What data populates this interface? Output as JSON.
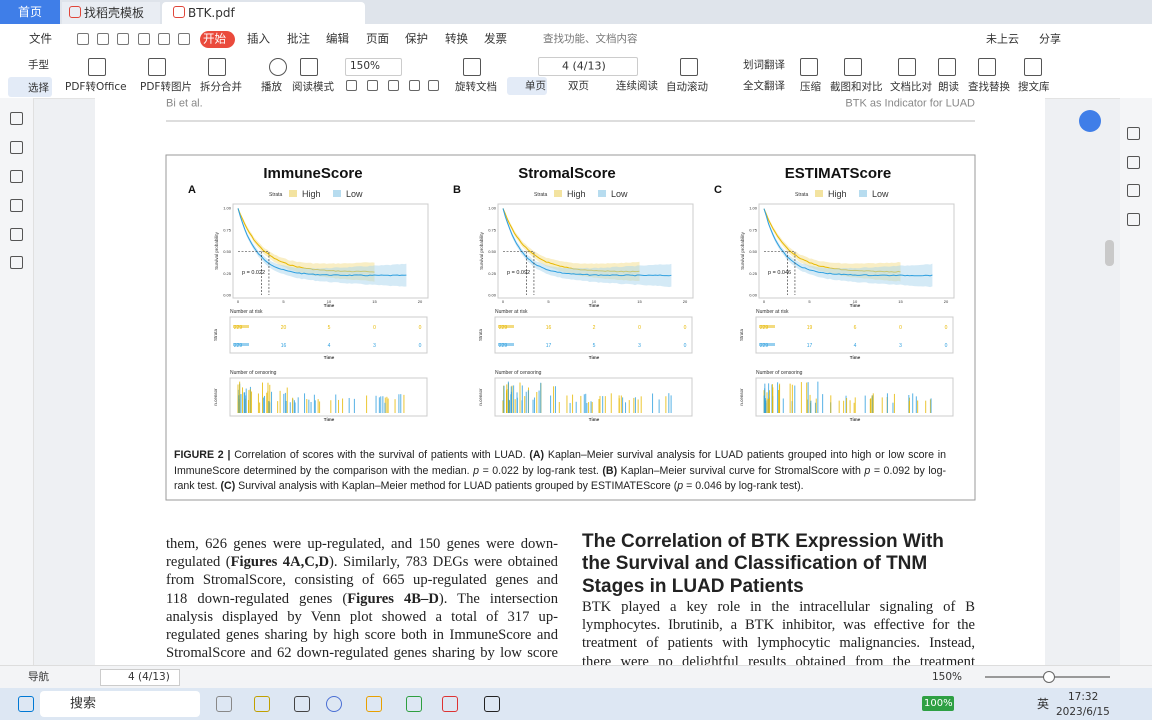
{
  "tabs": [
    "首页",
    "找稻壳模板",
    "BTK.pdf"
  ],
  "menu": {
    "file": "文件",
    "items": [
      "开始",
      "插入",
      "批注",
      "编辑",
      "页面",
      "保护",
      "转换",
      "发票"
    ],
    "search": "查找功能、文档内容",
    "cloud": "未上云",
    "share": "分享"
  },
  "toolbar": {
    "hand": "手型",
    "select": "选择",
    "buttons": [
      "PDF转Office",
      "PDF转图片",
      "拆分合并",
      "播放",
      "阅读模式"
    ],
    "zoom": "150%",
    "page": "4 (4/13)",
    "rotate": "旋转文档",
    "single": "单页",
    "double": "双页",
    "continuous": "连续阅读",
    "autoscroll": "自动滚动",
    "word_translate": "划词翻译",
    "full_translate": "全文翻译",
    "right_buttons": [
      "压缩",
      "截图和对比",
      "文档比对",
      "朗读",
      "查找替换",
      "搜文库"
    ]
  },
  "page_header": {
    "left": "Bi et al.",
    "right": "BTK as Indicator for LUAD"
  },
  "figure": {
    "legend": {
      "strata": "Strata",
      "high": "High",
      "low": "Low"
    },
    "y_label": "Survival probability",
    "x_label": "Time",
    "yticks": [
      "1.00",
      "0.75",
      "0.50",
      "0.25",
      "0.00"
    ],
    "xticks": [
      0,
      5,
      10,
      15,
      20
    ],
    "risk_title": "Number at risk",
    "censor_title": "Number of censoring",
    "strata_label": "Strata",
    "censor_label": "n.censor",
    "panels": [
      {
        "letter": "A",
        "title": "ImmuneScore",
        "p_value": "p = 0.022",
        "risk_high": [
          229,
          20,
          5,
          0,
          0
        ],
        "risk_low": [
          229,
          16,
          4,
          3,
          0
        ]
      },
      {
        "letter": "B",
        "title": "StromalScore",
        "p_value": "p = 0.092",
        "risk_high": [
          229,
          16,
          2,
          0,
          0
        ],
        "risk_low": [
          229,
          17,
          5,
          3,
          0
        ]
      },
      {
        "letter": "C",
        "title": "ESTIMATScore",
        "p_value": "p = 0.046",
        "risk_high": [
          229,
          19,
          6,
          0,
          0
        ],
        "risk_low": [
          229,
          17,
          4,
          3,
          0
        ]
      }
    ]
  },
  "caption": [
    "FIGURE 2 |",
    " Correlation of scores with the survival of patients with LUAD. ",
    "(A)",
    " Kaplan–Meier survival analysis for LUAD patients grouped into high or low score in ImmuneScore determined by the comparison with the median. ",
    "p",
    " = 0.022 by log-rank test. ",
    "(B)",
    " Kaplan–Meier survival curve for StromalScore with ",
    "p",
    " = 0.092 by log-rank test. ",
    "(C)",
    " Survival analysis with Kaplan–Meier method for LUAD patients grouped by ESTIMATEScore (",
    "p",
    " = 0.046 by log-rank test)."
  ],
  "left_column": [
    [
      "them, 626 genes were up-regulated, and 150 genes were down-"
    ],
    [
      "regulated (",
      "Figures 4A,C,D",
      "). Similarly, 783 DEGs were obtained"
    ],
    [
      "from StromalScore, consisting of 665 up-regulated genes and"
    ],
    [
      "118 down-regulated genes (",
      "Figures 4B–D",
      "). The intersection"
    ],
    [
      "analysis displayed by Venn plot showed a total of 317 up-"
    ],
    [
      "regulated genes sharing by high score both in ImmuneScore and"
    ],
    [
      "StromalScore and 62 down-regulated genes sharing by low score"
    ]
  ],
  "right_heading": [
    "The Correlation of BTK Expression With",
    "the Survival and Classification of TNM",
    "Stages in LUAD Patients"
  ],
  "right_column": [
    "BTK played a key role in the intracellular signaling of B",
    "lymphocytes. Ibrutinib, a BTK inhibitor, was effective for the",
    "treatment of patients with lymphocytic malignancies. Instead,",
    "there were no delightful results obtained from the treatment"
  ],
  "statusbar": {
    "nav": "导航",
    "page": "4 (4/13)",
    "zoom": "150%"
  },
  "taskbar": {
    "search": "搜索",
    "battery": "100%",
    "ime": "英",
    "time": "17:32",
    "date": "2023/6/15"
  }
}
